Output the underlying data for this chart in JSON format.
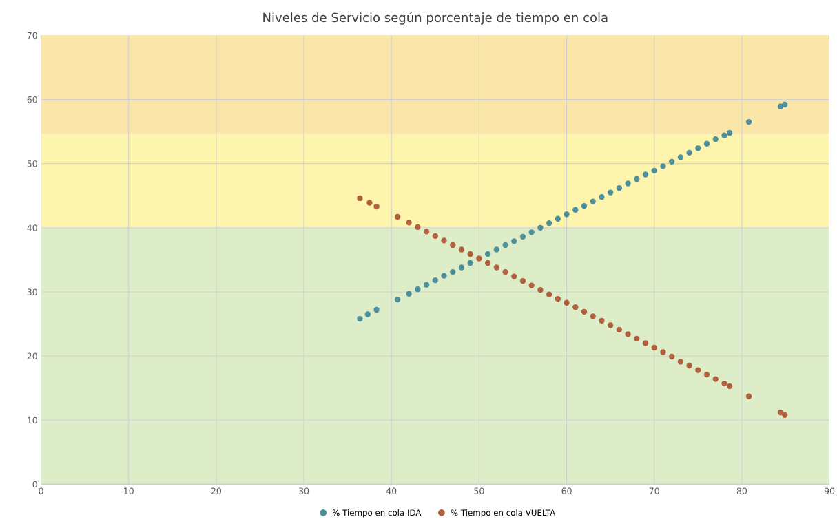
{
  "chart_data": {
    "type": "scatter",
    "title": "Niveles de Servicio según porcentaje de tiempo en cola",
    "xlim": [
      0,
      90
    ],
    "xticks": [
      0,
      10,
      20,
      30,
      40,
      50,
      60,
      70,
      80,
      90
    ],
    "ylim": [
      0,
      70
    ],
    "yticks": [
      0,
      10,
      20,
      30,
      40,
      50,
      60,
      70
    ],
    "grid": true,
    "legend": "bottom",
    "marker": "circle",
    "bands": [
      {
        "axis": "y",
        "from": 0,
        "to": 40,
        "color": "#dcedc8"
      },
      {
        "axis": "y",
        "from": 40,
        "to": 54.6,
        "color": "#fdf5ad"
      },
      {
        "axis": "y",
        "from": 54.6,
        "to": 70,
        "color": "#fbe6a9"
      }
    ],
    "series": [
      {
        "name": "% Tiempo en cola IDA",
        "color": "#4f8f9c",
        "x": [
          36.4,
          37.3,
          38.3,
          40.7,
          42,
          43,
          44,
          45,
          46,
          47,
          48,
          49,
          50,
          51,
          52,
          53,
          54,
          55,
          56,
          57,
          58,
          59,
          60,
          61,
          62,
          63,
          64,
          65,
          66,
          67,
          68,
          69,
          70,
          71,
          72,
          73,
          74,
          75,
          76,
          77,
          78,
          78.6,
          80.8,
          84.4,
          84.9
        ],
        "values": [
          25.8,
          26.5,
          27.2,
          28.8,
          29.7,
          30.4,
          31.1,
          31.8,
          32.5,
          33.1,
          33.8,
          34.5,
          null,
          35.9,
          36.6,
          37.3,
          37.9,
          38.6,
          39.3,
          40.0,
          40.7,
          41.4,
          42.1,
          42.8,
          43.4,
          44.1,
          44.8,
          45.5,
          46.2,
          46.9,
          47.6,
          48.3,
          48.9,
          49.6,
          50.3,
          51.0,
          51.7,
          52.4,
          53.1,
          53.8,
          54.4,
          54.8,
          56.5,
          58.9,
          59.2
        ]
      },
      {
        "name": "% Tiempo en cola VUELTA",
        "color": "#b0603c",
        "x": [
          36.4,
          37.5,
          38.3,
          40.7,
          42,
          43,
          44,
          45,
          46,
          47,
          48,
          49,
          50,
          51,
          52,
          53,
          54,
          55,
          56,
          57,
          58,
          59,
          60,
          61,
          62,
          63,
          64,
          65,
          66,
          67,
          68,
          69,
          70,
          71,
          72,
          73,
          74,
          75,
          76,
          77,
          78,
          78.6,
          80.8,
          84.4,
          84.9
        ],
        "values": [
          44.6,
          43.9,
          43.3,
          41.7,
          40.8,
          40.1,
          39.4,
          38.7,
          38.0,
          37.3,
          36.6,
          35.9,
          35.2,
          34.5,
          33.8,
          33.1,
          32.4,
          31.7,
          31.0,
          30.3,
          29.6,
          28.9,
          28.3,
          27.6,
          26.9,
          26.2,
          25.5,
          24.8,
          24.1,
          23.4,
          22.7,
          22.0,
          21.3,
          20.6,
          19.9,
          19.1,
          18.5,
          17.8,
          17.1,
          16.4,
          15.7,
          15.3,
          13.7,
          11.2,
          10.8
        ]
      }
    ]
  }
}
